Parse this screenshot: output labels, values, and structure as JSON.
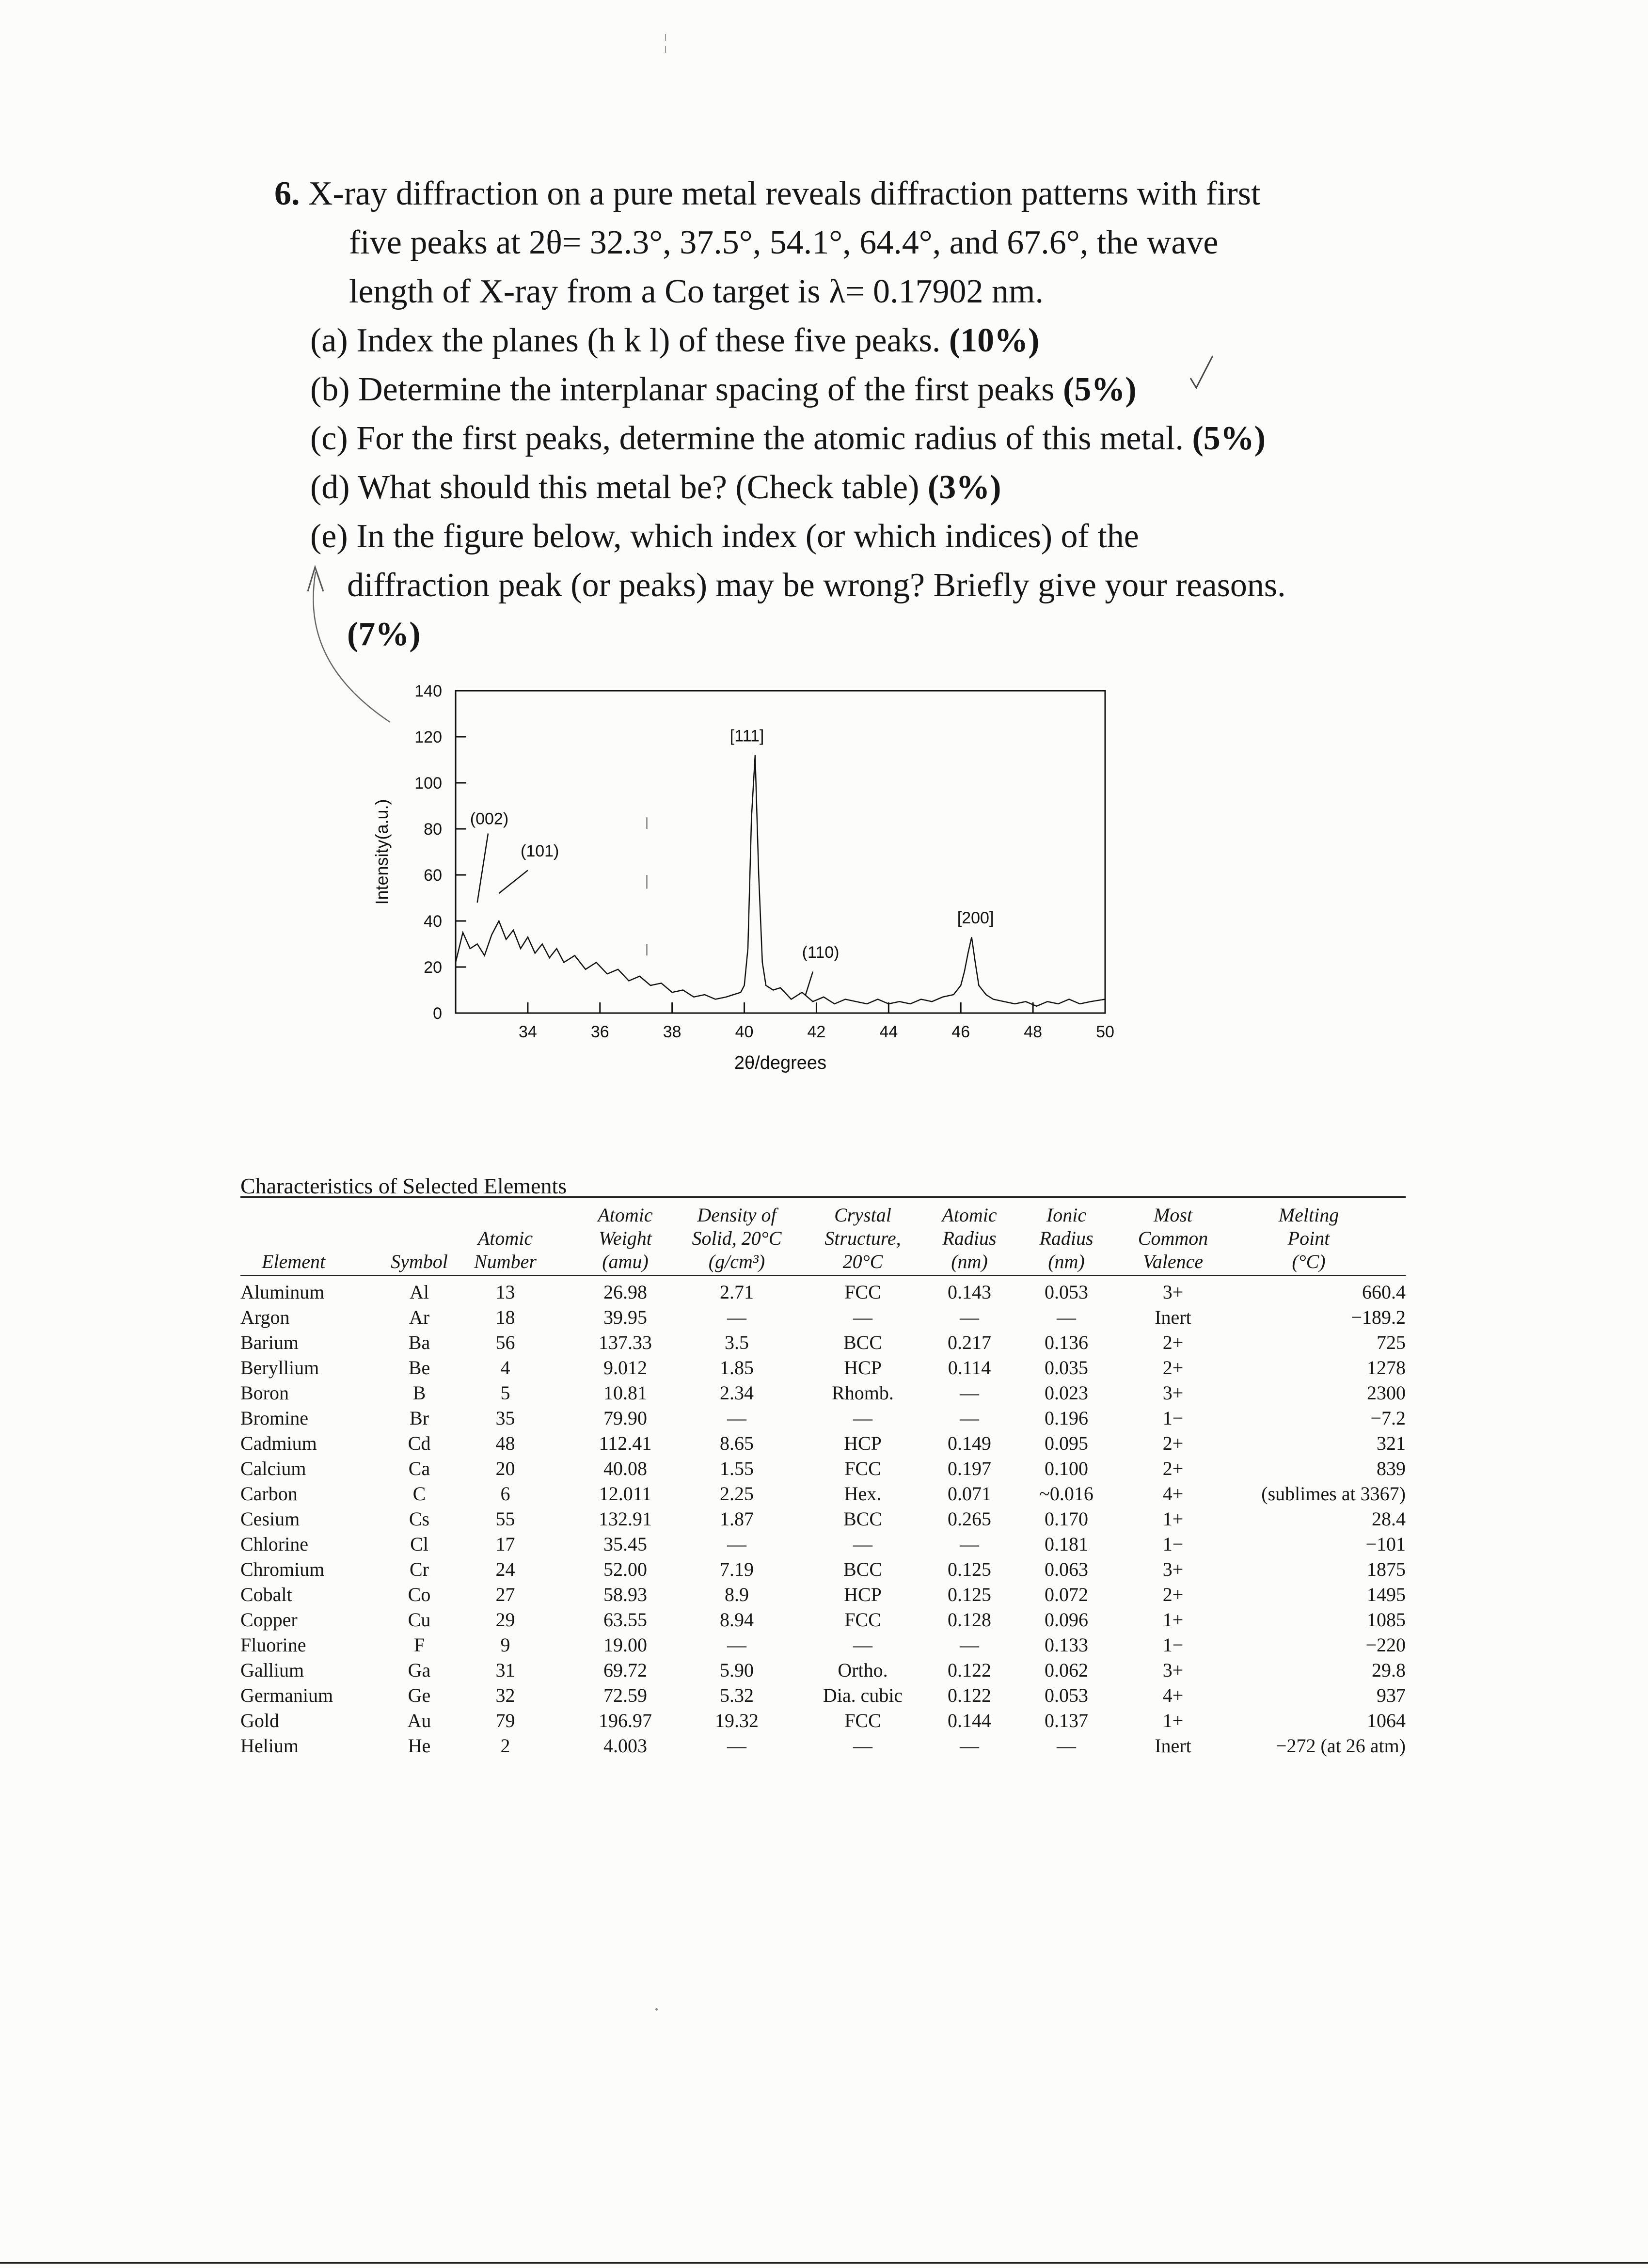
{
  "problem": {
    "line1_number": "6.",
    "line1": "X-ray diffraction on a pure metal reveals diffraction patterns with first",
    "line2": "five peaks at 2θ= 32.3°, 37.5°, 54.1°, 64.4°, and 67.6°, the wave",
    "line3": "length of X-ray from a Co target is λ= 0.17902 nm.",
    "parts": [
      {
        "text": "(a) Index the planes (h k l) of these five peaks. ",
        "pct": "(10%)"
      },
      {
        "text": "(b) Determine the interplanar spacing of the first peaks ",
        "pct": "(5%)"
      },
      {
        "text": "(c) For the first peaks, determine the atomic radius of this metal. ",
        "pct": "(5%)"
      },
      {
        "text": "(d) What should this metal be? (Check table) ",
        "pct": "(3%)"
      },
      {
        "text": "(e) In the figure below, which index (or which indices) of the",
        "pct": ""
      }
    ],
    "part_e_line2": "diffraction peak (or peaks) may be wrong? Briefly give your reasons.",
    "part_e_pct": "(7%)"
  },
  "chart_data": {
    "type": "line",
    "xlabel": "2θ/degrees",
    "ylabel": "Intensity(a.u.)",
    "xlim": [
      32,
      50
    ],
    "ylim": [
      0,
      140
    ],
    "x_ticks": [
      34,
      36,
      38,
      40,
      42,
      44,
      46,
      48,
      50
    ],
    "y_ticks": [
      0,
      20,
      40,
      60,
      80,
      100,
      120,
      140
    ],
    "series": [
      {
        "x": [
          32.0,
          32.2,
          32.4,
          32.6,
          32.8,
          33.0,
          33.2,
          33.4,
          33.6,
          33.8,
          34.0,
          34.2,
          34.4,
          34.6,
          34.8,
          35.0,
          35.3,
          35.6,
          35.9,
          36.2,
          36.5,
          36.8,
          37.1,
          37.4,
          37.7,
          38.0,
          38.3,
          38.6,
          38.9,
          39.2,
          39.5,
          39.7,
          39.9,
          40.0,
          40.1,
          40.2,
          40.3,
          40.4,
          40.5,
          40.6,
          40.8,
          41.0,
          41.3,
          41.6,
          41.9,
          42.2,
          42.5,
          42.8,
          43.1,
          43.4,
          43.7,
          44.0,
          44.3,
          44.6,
          44.9,
          45.2,
          45.5,
          45.8,
          46.0,
          46.1,
          46.2,
          46.3,
          46.4,
          46.5,
          46.7,
          46.9,
          47.2,
          47.5,
          47.8,
          48.1,
          48.4,
          48.7,
          49.0,
          49.3,
          49.6,
          50.0
        ],
        "y": [
          22,
          35,
          28,
          30,
          25,
          34,
          40,
          32,
          36,
          28,
          33,
          26,
          30,
          24,
          28,
          22,
          25,
          19,
          22,
          17,
          19,
          14,
          16,
          12,
          13,
          9,
          10,
          7,
          8,
          6,
          7,
          8,
          9,
          12,
          28,
          85,
          112,
          60,
          22,
          12,
          10,
          11,
          6,
          9,
          5,
          7,
          4,
          6,
          5,
          4,
          6,
          4,
          5,
          4,
          6,
          5,
          7,
          8,
          12,
          18,
          26,
          33,
          22,
          12,
          8,
          6,
          5,
          4,
          5,
          3,
          5,
          4,
          6,
          4,
          5,
          6
        ]
      }
    ],
    "annotations": [
      {
        "label": "(002)",
        "x": 32.4,
        "y": 82
      },
      {
        "label": "(101)",
        "x": 33.8,
        "y": 68
      },
      {
        "label": "[111]",
        "x": 39.6,
        "y": 118
      },
      {
        "label": "(110)",
        "x": 41.6,
        "y": 24
      },
      {
        "label": "[200]",
        "x": 45.9,
        "y": 39
      }
    ]
  },
  "table": {
    "title": "Characteristics of Selected Elements",
    "headers": [
      {
        "lines": [
          "Element"
        ]
      },
      {
        "lines": [
          "Symbol"
        ]
      },
      {
        "lines": [
          "Atomic",
          "Number"
        ]
      },
      {
        "lines": [
          "Atomic",
          "Weight",
          "(amu)"
        ]
      },
      {
        "lines": [
          "Density of",
          "Solid, 20°C",
          "(g/cm³)"
        ]
      },
      {
        "lines": [
          "Crystal",
          "Structure,",
          "20°C"
        ]
      },
      {
        "lines": [
          "Atomic",
          "Radius",
          "(nm)"
        ]
      },
      {
        "lines": [
          "Ionic",
          "Radius",
          "(nm)"
        ]
      },
      {
        "lines": [
          "Most",
          "Common",
          "Valence"
        ]
      },
      {
        "lines": [
          "Melting",
          "Point",
          "(°C)"
        ]
      }
    ],
    "rows": [
      [
        "Aluminum",
        "Al",
        "13",
        "26.98",
        "2.71",
        "FCC",
        "0.143",
        "0.053",
        "3+",
        "660.4"
      ],
      [
        "Argon",
        "Ar",
        "18",
        "39.95",
        "—",
        "—",
        "—",
        "—",
        "Inert",
        "−189.2"
      ],
      [
        "Barium",
        "Ba",
        "56",
        "137.33",
        "3.5",
        "BCC",
        "0.217",
        "0.136",
        "2+",
        "725"
      ],
      [
        "Beryllium",
        "Be",
        "4",
        "9.012",
        "1.85",
        "HCP",
        "0.114",
        "0.035",
        "2+",
        "1278"
      ],
      [
        "Boron",
        "B",
        "5",
        "10.81",
        "2.34",
        "Rhomb.",
        "—",
        "0.023",
        "3+",
        "2300"
      ],
      [
        "Bromine",
        "Br",
        "35",
        "79.90",
        "—",
        "—",
        "—",
        "0.196",
        "1−",
        "−7.2"
      ],
      [
        "Cadmium",
        "Cd",
        "48",
        "112.41",
        "8.65",
        "HCP",
        "0.149",
        "0.095",
        "2+",
        "321"
      ],
      [
        "Calcium",
        "Ca",
        "20",
        "40.08",
        "1.55",
        "FCC",
        "0.197",
        "0.100",
        "2+",
        "839"
      ],
      [
        "Carbon",
        "C",
        "6",
        "12.011",
        "2.25",
        "Hex.",
        "0.071",
        "~0.016",
        "4+",
        "(sublimes at 3367)"
      ],
      [
        "Cesium",
        "Cs",
        "55",
        "132.91",
        "1.87",
        "BCC",
        "0.265",
        "0.170",
        "1+",
        "28.4"
      ],
      [
        "Chlorine",
        "Cl",
        "17",
        "35.45",
        "—",
        "—",
        "—",
        "0.181",
        "1−",
        "−101"
      ],
      [
        "Chromium",
        "Cr",
        "24",
        "52.00",
        "7.19",
        "BCC",
        "0.125",
        "0.063",
        "3+",
        "1875"
      ],
      [
        "Cobalt",
        "Co",
        "27",
        "58.93",
        "8.9",
        "HCP",
        "0.125",
        "0.072",
        "2+",
        "1495"
      ],
      [
        "Copper",
        "Cu",
        "29",
        "63.55",
        "8.94",
        "FCC",
        "0.128",
        "0.096",
        "1+",
        "1085"
      ],
      [
        "Fluorine",
        "F",
        "9",
        "19.00",
        "—",
        "—",
        "—",
        "0.133",
        "1−",
        "−220"
      ],
      [
        "Gallium",
        "Ga",
        "31",
        "69.72",
        "5.90",
        "Ortho.",
        "0.122",
        "0.062",
        "3+",
        "29.8"
      ],
      [
        "Germanium",
        "Ge",
        "32",
        "72.59",
        "5.32",
        "Dia. cubic",
        "0.122",
        "0.053",
        "4+",
        "937"
      ],
      [
        "Gold",
        "Au",
        "79",
        "196.97",
        "19.32",
        "FCC",
        "0.144",
        "0.137",
        "1+",
        "1064"
      ],
      [
        "Helium",
        "He",
        "2",
        "4.003",
        "—",
        "—",
        "—",
        "—",
        "Inert",
        "−272 (at 26 atm)"
      ]
    ]
  }
}
